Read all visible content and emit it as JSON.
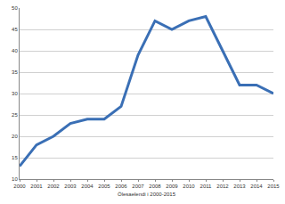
{
  "chart_data": {
    "type": "line",
    "x_label": "Ölesaelendi i 2000-2015",
    "categories": [
      "2000",
      "2001",
      "2002",
      "2003",
      "2004",
      "2005",
      "2006",
      "2007",
      "2008",
      "2009",
      "2010",
      "2011",
      "2012",
      "2013",
      "2014",
      "2015"
    ],
    "values": [
      13,
      18,
      20,
      23,
      24,
      24,
      27,
      39,
      47,
      45,
      47,
      48,
      40,
      32,
      32,
      30
    ],
    "color": "#3a6fb5",
    "ylim": [
      10,
      50
    ],
    "yticks": [
      10,
      15,
      20,
      25,
      30,
      35,
      40,
      45,
      50
    ],
    "grid": true
  }
}
